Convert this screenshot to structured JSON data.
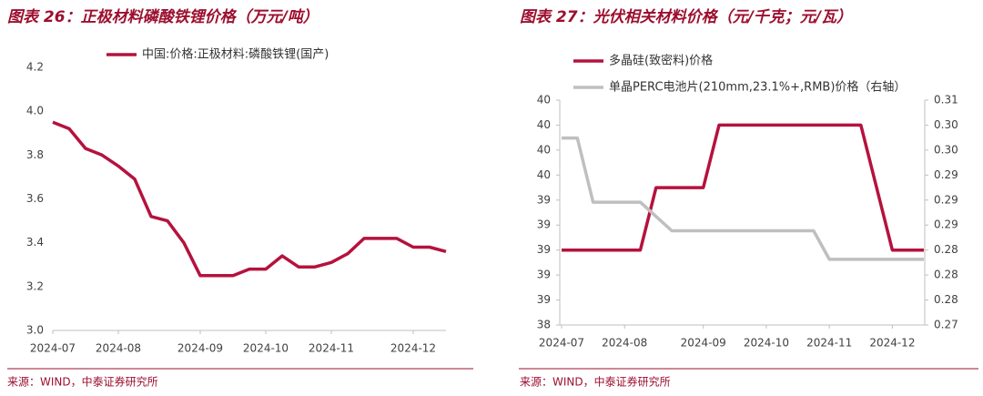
{
  "chart_data": [
    {
      "type": "line",
      "title": "图表 26：正极材料磷酸铁锂价格（万元/吨）",
      "source": "来源：WIND，中泰证券研究所",
      "categories": [
        "2024-07",
        null,
        null,
        null,
        "2024-08",
        null,
        null,
        null,
        null,
        "2024-09",
        null,
        null,
        null,
        "2024-10",
        null,
        null,
        null,
        "2024-11",
        null,
        null,
        null,
        null,
        "2024-12",
        null,
        null
      ],
      "series": [
        {
          "name": "中国:价格:正极材料:磷酸铁锂(国产)",
          "color": "#b5123e",
          "values": [
            3.95,
            3.92,
            3.83,
            3.8,
            3.75,
            3.69,
            3.52,
            3.5,
            3.4,
            3.25,
            3.25,
            3.25,
            3.28,
            3.28,
            3.34,
            3.29,
            3.29,
            3.31,
            3.35,
            3.42,
            3.42,
            3.42,
            3.38,
            3.38,
            3.36
          ]
        }
      ],
      "ylim": [
        3.0,
        4.2
      ],
      "yticks": [
        {
          "value": 3,
          "label": "3.0"
        },
        3.2,
        3.4,
        3.6,
        3.8,
        {
          "value": 4,
          "label": "4.0"
        },
        4.2
      ]
    },
    {
      "type": "line",
      "title": "图表 27：光伏相关材料价格（元/千克；元/瓦）",
      "source": "来源：WIND，中泰证券研究所",
      "categories": [
        "2024-07",
        null,
        null,
        null,
        "2024-08",
        null,
        null,
        null,
        null,
        "2024-09",
        null,
        null,
        null,
        "2024-10",
        null,
        null,
        null,
        "2024-11",
        null,
        null,
        null,
        "2024-12",
        null,
        null
      ],
      "series": [
        {
          "name": "多晶硅(致密料)价格",
          "color": "#b5123e",
          "values": [
            39.0,
            39.0,
            39.0,
            39.0,
            39.0,
            39.0,
            39.5,
            39.5,
            39.5,
            39.5,
            40.0,
            40.0,
            40.0,
            40.0,
            40.0,
            40.0,
            40.0,
            40.0,
            40.0,
            40.0,
            39.5,
            39.0,
            39.0,
            39.0
          ]
        },
        {
          "name": "单晶PERC电池片(210mm,23.1%+,RMB)价格（右轴）",
          "color": "#bfbfbf",
          "axis": "y2",
          "values": [
            0.3,
            0.3,
            0.291,
            0.291,
            0.291,
            0.291,
            0.289,
            0.287,
            0.287,
            0.287,
            0.287,
            0.287,
            0.287,
            0.287,
            0.287,
            0.287,
            0.287,
            0.283,
            0.283,
            0.283,
            0.283,
            0.283,
            0.283,
            0.283
          ]
        }
      ],
      "ylim": [
        38.4,
        40.2
      ],
      "yticks": [
        {
          "value": 38.4,
          "label": "38"
        },
        {
          "value": 38.6,
          "label": "39"
        },
        {
          "value": 38.8,
          "label": "39"
        },
        {
          "value": 39.0,
          "label": "39"
        },
        {
          "value": 39.2,
          "label": "39"
        },
        {
          "value": 39.4,
          "label": "39"
        },
        {
          "value": 39.6,
          "label": "40"
        },
        {
          "value": 39.8,
          "label": "40"
        },
        {
          "value": 40.0,
          "label": "40"
        },
        {
          "value": 40.2,
          "label": "40"
        }
      ],
      "y2lim": [
        0.2738,
        0.3053
      ],
      "y2ticks": [
        {
          "value": 0.2738,
          "label": "0.27"
        },
        {
          "value": 0.2773,
          "label": "0.28"
        },
        {
          "value": 0.2808,
          "label": "0.28"
        },
        {
          "value": 0.2843,
          "label": "0.28"
        },
        {
          "value": 0.2878,
          "label": "0.29"
        },
        {
          "value": 0.2913,
          "label": "0.29"
        },
        {
          "value": 0.2948,
          "label": "0.29"
        },
        {
          "value": 0.2983,
          "label": "0.30"
        },
        {
          "value": 0.3018,
          "label": "0.30"
        },
        {
          "value": 0.3053,
          "label": "0.31"
        }
      ]
    }
  ]
}
